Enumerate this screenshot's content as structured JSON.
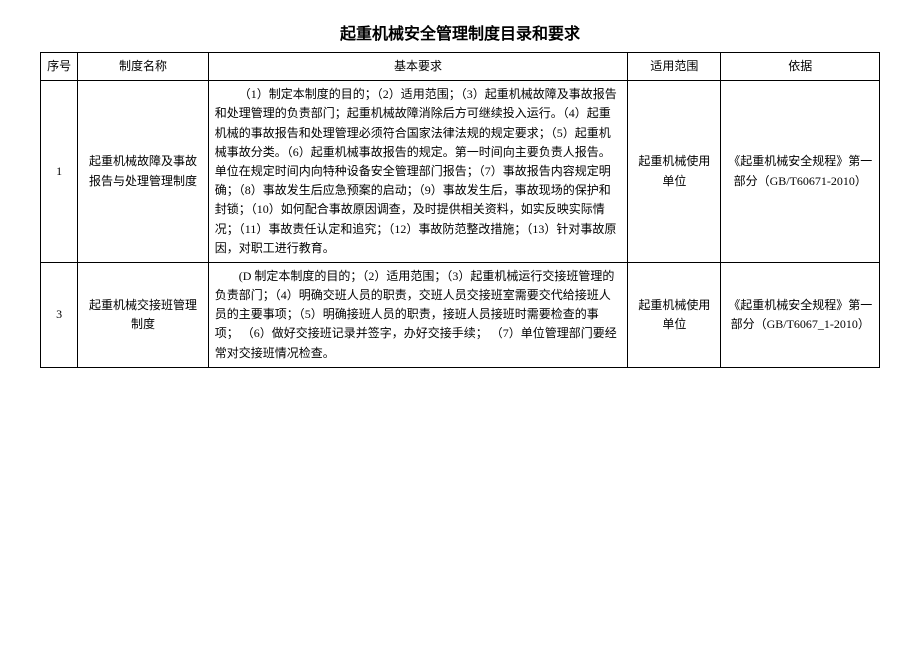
{
  "title": "起重机械安全管理制度目录和要求",
  "columns": {
    "idx": "序号",
    "name": "制度名称",
    "req": "基本要求",
    "scope": "适用范围",
    "basis": "依据"
  },
  "rows": [
    {
      "idx": "1",
      "name": "起重机械故障及事故报告与处理管理制度",
      "req": "（1）制定本制度的目的；（2）适用范围；（3）起重机械故障及事故报告和处理管理的负责部门；起重机械故障消除后方可继续投入运行。（4）起重机械的事故报告和处理管理必须符合国家法律法规的规定要求；（5）起重机械事故分类。（6）起重机械事故报告的规定。第一时间向主要负责人报告。单位在规定时间内向特种设备安全管理部门报告；（7）事故报告内容规定明确；（8）事故发生后应急预案的启动；（9）事故发生后，事故现场的保护和封锁；（10）如何配合事故原因调查，及时提供相关资料，如实反映实际情况；（11）事故责任认定和追究；（12）事故防范整改措施；（13）针对事故原因，对职工进行教育。",
      "scope": "起重机械使用单位",
      "basis": "《起重机械安全规程》第一部分（GB/T60671-2010）"
    },
    {
      "idx": "3",
      "name": "起重机械交接班管理制度",
      "req": "(D 制定本制度的目的；（2）适用范围；（3）起重机械运行交接班管理的负责部门；（4）明确交班人员的职责，交班人员交接班室需要交代给接班人员的主要事项；（5）明确接班人员的职责，接班人员接班时需要检查的事项；\n（6）做好交接班记录并签字，办好交接手续；\n（7）单位管理部门要经常对交接班情况检查。",
      "scope": "起重机械使用单位",
      "basis": "《起重机械安全规程》第一部分（GB/T6067_1-2010）"
    }
  ]
}
